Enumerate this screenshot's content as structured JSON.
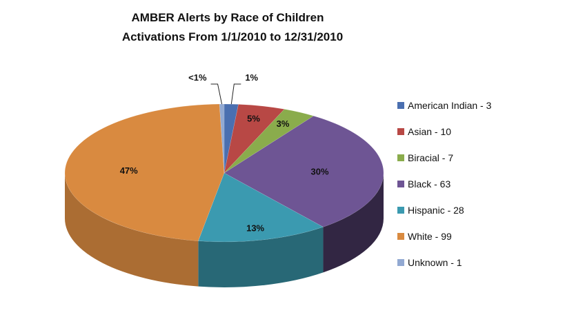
{
  "chart_data": {
    "type": "pie",
    "variant": "3d",
    "title_lines": [
      "AMBER Alerts  by Race of Children",
      "Activations From 1/1/2010 to 12/31/2010"
    ],
    "slices": [
      {
        "name": "American Indian",
        "value": 3,
        "label": "1%",
        "color": "#4a6fb0",
        "legend": "American Indian  - 3"
      },
      {
        "name": "Asian",
        "value": 10,
        "label": "5%",
        "color": "#b84845",
        "legend": "Asian - 10"
      },
      {
        "name": "Biracial",
        "value": 7,
        "label": "3%",
        "color": "#8aac4c",
        "legend": "Biracial - 7"
      },
      {
        "name": "Black",
        "value": 63,
        "label": "30%",
        "color": "#6e5594",
        "legend": "Black - 63"
      },
      {
        "name": "Hispanic",
        "value": 28,
        "label": "13%",
        "color": "#3b9ab0",
        "legend": "Hispanic - 28"
      },
      {
        "name": "White",
        "value": 99,
        "label": "47%",
        "color": "#d98a40",
        "legend": "White - 99"
      },
      {
        "name": "Unknown",
        "value": 1,
        "label": "<1%",
        "color": "#92a9d2",
        "legend": "Unknown - 1"
      }
    ],
    "legend_position": "right"
  }
}
